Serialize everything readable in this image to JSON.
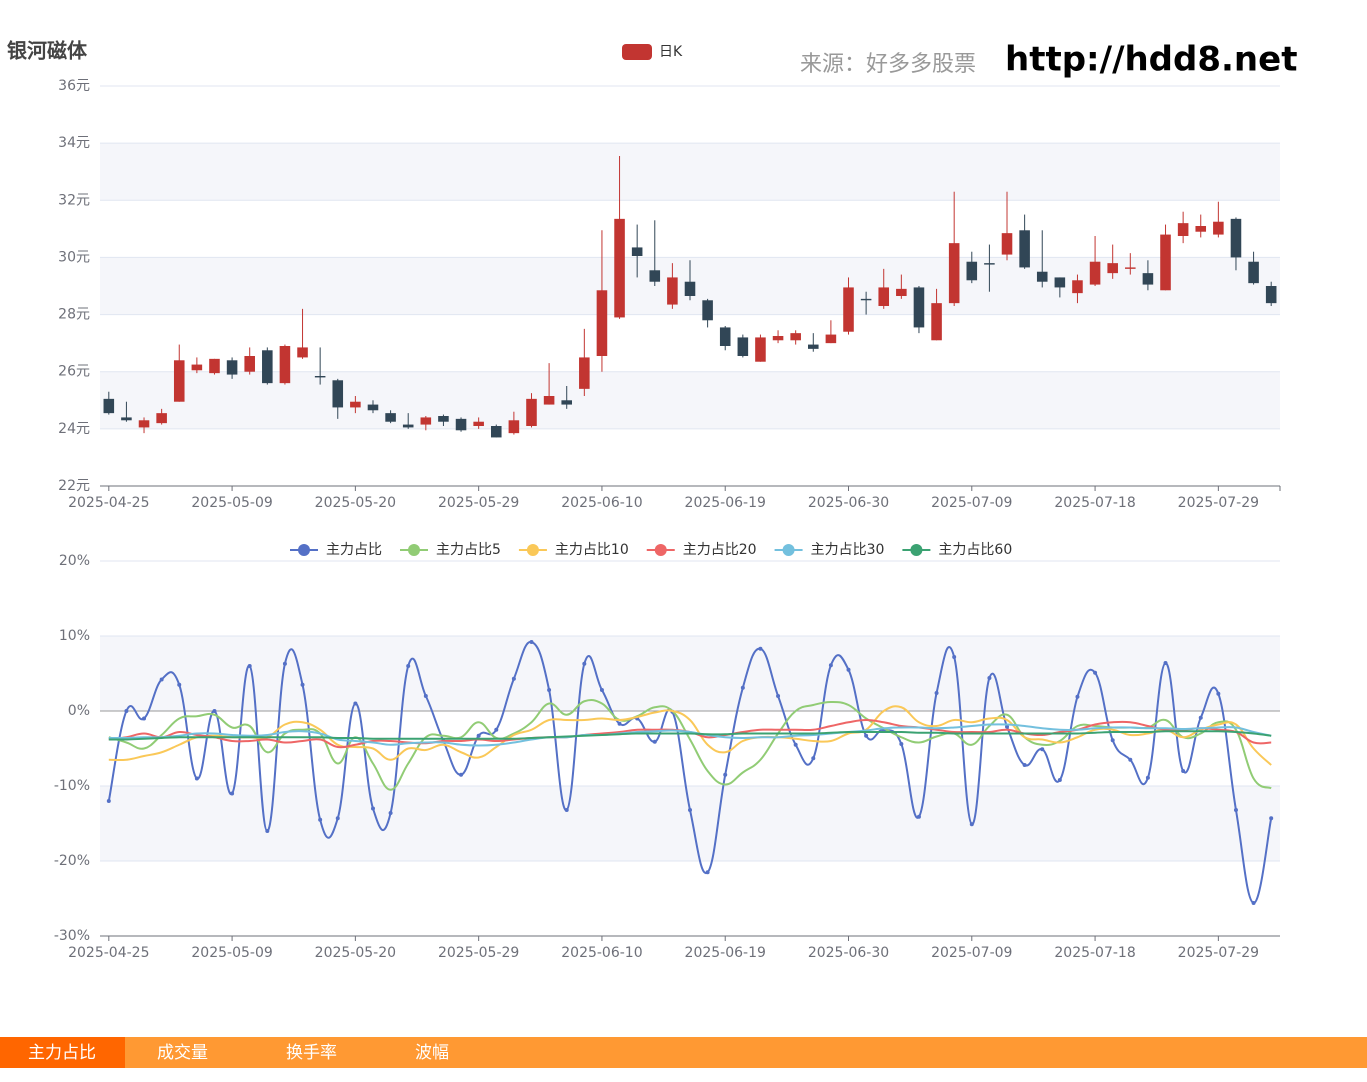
{
  "header": {
    "stock": "银河磁体",
    "source": "来源：好多多股票",
    "url": "http://hdd8.net"
  },
  "tabs": [
    "主力占比",
    "成交量",
    "换手率",
    "波幅"
  ],
  "chart_data": [
    {
      "type": "candlestick",
      "categories": [
        "2025-04-25",
        null,
        null,
        null,
        null,
        null,
        null,
        "2025-05-09",
        null,
        null,
        null,
        null,
        null,
        null,
        "2025-05-20",
        null,
        null,
        null,
        null,
        null,
        null,
        "2025-05-29",
        null,
        null,
        null,
        null,
        null,
        null,
        "2025-06-10",
        null,
        null,
        null,
        null,
        null,
        null,
        "2025-06-19",
        null,
        null,
        null,
        null,
        null,
        null,
        "2025-06-30",
        null,
        null,
        null,
        null,
        null,
        null,
        "2025-07-09",
        null,
        null,
        null,
        null,
        null,
        null,
        "2025-07-18",
        null,
        null,
        null,
        null,
        null,
        null,
        "2025-07-29",
        null,
        null,
        null
      ],
      "ylim": [
        22,
        36
      ],
      "yticks": [
        {
          "value": 22,
          "label": "22元"
        },
        {
          "value": 24,
          "label": "24元"
        },
        {
          "value": 26,
          "label": "26元"
        },
        {
          "value": 28,
          "label": "28元"
        },
        {
          "value": 30,
          "label": "30元"
        },
        {
          "value": 32,
          "label": "32元"
        },
        {
          "value": 34,
          "label": "34元"
        },
        {
          "value": 36,
          "label": "36元"
        }
      ],
      "up_color": "#c23531",
      "down_color": "#314656",
      "series": [
        {
          "name": "日K",
          "color": "#c23531",
          "values": [
            [
              25.05,
              24.55,
              24.5,
              25.3
            ],
            [
              24.4,
              24.3,
              24.25,
              24.95
            ],
            [
              24.05,
              24.3,
              23.85,
              24.4
            ],
            [
              24.2,
              24.55,
              24.15,
              24.7
            ],
            [
              24.95,
              26.4,
              24.95,
              26.95
            ],
            [
              26.05,
              26.25,
              25.95,
              26.5
            ],
            [
              25.95,
              26.45,
              25.9,
              26.45
            ],
            [
              26.4,
              25.9,
              25.75,
              26.5
            ],
            [
              26.0,
              26.55,
              25.9,
              26.85
            ],
            [
              26.75,
              25.6,
              25.55,
              26.85
            ],
            [
              25.6,
              26.9,
              25.55,
              26.95
            ],
            [
              26.5,
              26.85,
              26.45,
              28.2
            ],
            [
              25.85,
              25.8,
              25.55,
              26.85
            ],
            [
              25.7,
              24.75,
              24.35,
              25.75
            ],
            [
              24.75,
              24.95,
              24.55,
              25.15
            ],
            [
              24.85,
              24.65,
              24.55,
              25.0
            ],
            [
              24.55,
              24.25,
              24.2,
              24.65
            ],
            [
              24.15,
              24.05,
              24.0,
              24.55
            ],
            [
              24.15,
              24.4,
              23.95,
              24.45
            ],
            [
              24.45,
              24.25,
              24.1,
              24.5
            ],
            [
              24.35,
              23.95,
              23.9,
              24.4
            ],
            [
              24.1,
              24.25,
              24.0,
              24.4
            ],
            [
              24.1,
              23.7,
              23.7,
              24.15
            ],
            [
              23.85,
              24.3,
              23.8,
              24.6
            ],
            [
              24.1,
              25.05,
              24.05,
              25.25
            ],
            [
              24.85,
              25.15,
              24.85,
              26.3
            ],
            [
              25.0,
              24.85,
              24.7,
              25.5
            ],
            [
              25.4,
              26.5,
              25.15,
              27.5
            ],
            [
              26.55,
              28.85,
              26.0,
              30.95
            ],
            [
              27.9,
              31.35,
              27.85,
              33.55
            ],
            [
              30.35,
              30.05,
              29.3,
              31.15
            ],
            [
              29.55,
              29.15,
              29.0,
              31.3
            ],
            [
              28.35,
              29.3,
              28.2,
              29.8
            ],
            [
              29.15,
              28.65,
              28.5,
              29.9
            ],
            [
              28.5,
              27.8,
              27.55,
              28.55
            ],
            [
              27.55,
              26.9,
              26.75,
              27.6
            ],
            [
              27.2,
              26.55,
              26.5,
              27.3
            ],
            [
              26.35,
              27.2,
              26.35,
              27.3
            ],
            [
              27.1,
              27.25,
              27.0,
              27.45
            ],
            [
              27.1,
              27.35,
              26.95,
              27.45
            ],
            [
              26.95,
              26.8,
              26.7,
              27.35
            ],
            [
              27.0,
              27.3,
              27.0,
              27.8
            ],
            [
              27.4,
              28.95,
              27.3,
              29.3
            ],
            [
              28.55,
              28.5,
              28.0,
              28.8
            ],
            [
              28.3,
              28.95,
              28.2,
              29.6
            ],
            [
              28.65,
              28.9,
              28.55,
              29.4
            ],
            [
              28.95,
              27.55,
              27.35,
              29.0
            ],
            [
              27.1,
              28.4,
              27.1,
              28.9
            ],
            [
              28.4,
              30.5,
              28.3,
              32.3
            ],
            [
              29.85,
              29.2,
              29.1,
              30.2
            ],
            [
              29.8,
              29.75,
              28.8,
              30.45
            ],
            [
              30.1,
              30.85,
              29.9,
              32.3
            ],
            [
              30.95,
              29.65,
              29.6,
              31.5
            ],
            [
              29.5,
              29.15,
              28.95,
              30.95
            ],
            [
              29.3,
              28.95,
              28.6,
              29.3
            ],
            [
              28.75,
              29.2,
              28.4,
              29.4
            ],
            [
              29.05,
              29.85,
              29.0,
              30.75
            ],
            [
              29.45,
              29.8,
              29.25,
              30.45
            ],
            [
              29.6,
              29.65,
              29.4,
              30.15
            ],
            [
              29.45,
              29.05,
              28.85,
              29.9
            ],
            [
              28.85,
              30.8,
              28.85,
              31.15
            ],
            [
              30.75,
              31.2,
              30.5,
              31.6
            ],
            [
              30.9,
              31.1,
              30.7,
              31.5
            ],
            [
              30.8,
              31.25,
              30.7,
              31.95
            ],
            [
              31.35,
              30.0,
              29.55,
              31.4
            ],
            [
              29.85,
              29.1,
              29.05,
              30.2
            ],
            [
              29.0,
              28.4,
              28.3,
              29.15
            ]
          ]
        }
      ],
      "grid": true
    },
    {
      "type": "line",
      "categories": [
        "2025-04-25",
        null,
        null,
        null,
        null,
        null,
        null,
        "2025-05-09",
        null,
        null,
        null,
        null,
        null,
        null,
        "2025-05-20",
        null,
        null,
        null,
        null,
        null,
        null,
        "2025-05-29",
        null,
        null,
        null,
        null,
        null,
        null,
        "2025-06-10",
        null,
        null,
        null,
        null,
        null,
        null,
        "2025-06-19",
        null,
        null,
        null,
        null,
        null,
        null,
        "2025-06-30",
        null,
        null,
        null,
        null,
        null,
        null,
        "2025-07-09",
        null,
        null,
        null,
        null,
        null,
        null,
        "2025-07-18",
        null,
        null,
        null,
        null,
        null,
        null,
        "2025-07-29",
        null,
        null,
        null
      ],
      "ylim": [
        -30,
        20
      ],
      "yticks": [
        {
          "value": -30,
          "label": "-30%"
        },
        {
          "value": -20,
          "label": "-20%"
        },
        {
          "value": -10,
          "label": "-10%"
        },
        {
          "value": 0,
          "label": "0%"
        },
        {
          "value": 10,
          "label": "10%"
        },
        {
          "value": 20,
          "label": "20%"
        }
      ],
      "grid": true,
      "series": [
        {
          "name": "主力占比",
          "color": "#5470c6",
          "values": [
            -12,
            0,
            -1,
            4.2,
            3.5,
            -9,
            0,
            -11,
            6,
            -16,
            6.3,
            3.5,
            -14.5,
            -14.3,
            1,
            -13,
            -13.6,
            6,
            2,
            -4,
            -8.5,
            -3.3,
            -2.5,
            4.3,
            9.2,
            2.8,
            -13.2,
            6.3,
            2.8,
            -1.7,
            -1,
            -4.1,
            -0.1,
            -13.2,
            -21.5,
            -8.5,
            3.1,
            8.3,
            2,
            -4.5,
            -6.3,
            6.1,
            5.5,
            -3.3,
            -2.5,
            -4.4,
            -14.1,
            2.4,
            7.2,
            -15.1,
            4.4,
            -2.1,
            -7.2,
            -5.1,
            -9.2,
            1.9,
            5.1,
            -3.9,
            -6.5,
            -8.9,
            6.4,
            -8,
            -0.9,
            2.3,
            -13.2,
            -25.6,
            -14.3
          ]
        },
        {
          "name": "主力占比5",
          "color": "#91cc75",
          "values": [
            -3.5,
            -4.2,
            -5,
            -3.2,
            -1,
            -0.7,
            -0.5,
            -2.2,
            -2,
            -5.5,
            -3,
            -2.5,
            -3,
            -7,
            -3.5,
            -7,
            -10.5,
            -7,
            -3.5,
            -3.3,
            -3.5,
            -1.5,
            -3.6,
            -3,
            -1.5,
            1,
            -0.5,
            1.3,
            1,
            -1.2,
            -0.7,
            0.5,
            0,
            -3.8,
            -8,
            -9.8,
            -8.2,
            -6.5,
            -3,
            0,
            0.8,
            1.2,
            0.8,
            -1,
            -2.3,
            -3.5,
            -4.2,
            -3.4,
            -3,
            -4.5,
            -2,
            -0.5,
            -3.5,
            -4.5,
            -4,
            -2,
            -2,
            -2.2,
            -2.2,
            -2.2,
            -1.2,
            -3.5,
            -3,
            -1.5,
            -2.5,
            -9,
            -10.3
          ]
        },
        {
          "name": "主力占比10",
          "color": "#fac858",
          "values": [
            -6.5,
            -6.5,
            -6,
            -5.5,
            -4.5,
            -3.5,
            -3.3,
            -3.5,
            -3.5,
            -3.5,
            -1.8,
            -1.5,
            -2.5,
            -4.5,
            -4.8,
            -5,
            -6.5,
            -5,
            -5.2,
            -4.5,
            -5.5,
            -6.2,
            -4.8,
            -3.2,
            -2.5,
            -1.2,
            -1.2,
            -1.2,
            -1,
            -1.2,
            -0.8,
            -0.2,
            0,
            -1.2,
            -4.5,
            -5.5,
            -4,
            -3.5,
            -3.5,
            -3.7,
            -4,
            -4,
            -3,
            -2.5,
            0,
            0.5,
            -1.5,
            -2,
            -1.2,
            -1.5,
            -1,
            -1.2,
            -3.5,
            -3.8,
            -4.2,
            -3.5,
            -2.5,
            -2.5,
            -3.2,
            -3,
            -2.5,
            -3.5,
            -2.5,
            -1.8,
            -1.8,
            -5,
            -7.2
          ]
        },
        {
          "name": "主力占比20",
          "color": "#ee6666",
          "values": [
            -3.8,
            -3.5,
            -3.0,
            -3.5,
            -2.8,
            -3.2,
            -3.5,
            -4.0,
            -4.0,
            -3.8,
            -4.2,
            -4.0,
            -3.8,
            -4.8,
            -4.5,
            -4.0,
            -4.0,
            -4.2,
            -4.3,
            -4.0,
            -4.0,
            -3.8,
            -4.0,
            -3.8,
            -3.6,
            -3.5,
            -3.5,
            -3.2,
            -3.0,
            -2.8,
            -2.5,
            -2.5,
            -2.5,
            -2.8,
            -3.5,
            -3.2,
            -2.8,
            -2.5,
            -2.5,
            -2.5,
            -2.5,
            -2.0,
            -1.5,
            -1.2,
            -1.5,
            -2.0,
            -2.2,
            -2.5,
            -2.8,
            -2.8,
            -2.8,
            -2.5,
            -3.0,
            -3.2,
            -2.8,
            -2.5,
            -1.8,
            -1.5,
            -1.5,
            -2.0,
            -2.5,
            -2.5,
            -2.3,
            -2.5,
            -2.8,
            -4.2,
            -4.2
          ]
        },
        {
          "name": "主力占比30",
          "color": "#73c0de",
          "values": [
            -3.6,
            -3.6,
            -3.5,
            -3.5,
            -3.3,
            -3.0,
            -3.0,
            -3.2,
            -3.3,
            -3.2,
            -2.8,
            -2.7,
            -3.0,
            -3.8,
            -4.0,
            -4.2,
            -4.5,
            -4.3,
            -4.2,
            -4.2,
            -4.5,
            -4.6,
            -4.5,
            -4.2,
            -3.8,
            -3.5,
            -3.5,
            -3.2,
            -3.2,
            -3.0,
            -2.8,
            -2.7,
            -2.6,
            -2.8,
            -3.2,
            -3.5,
            -3.6,
            -3.5,
            -3.5,
            -3.3,
            -3.2,
            -3.0,
            -2.8,
            -2.6,
            -2.3,
            -2.2,
            -2.2,
            -2.3,
            -2.2,
            -2.0,
            -1.8,
            -1.8,
            -2.0,
            -2.3,
            -2.5,
            -2.5,
            -2.3,
            -2.2,
            -2.2,
            -2.3,
            -2.3,
            -2.4,
            -2.3,
            -2.2,
            -2.2,
            -2.8,
            -3.3
          ]
        },
        {
          "name": "主力占比60",
          "color": "#3ba272",
          "values": [
            -3.8,
            -3.8,
            -3.7,
            -3.6,
            -3.5,
            -3.5,
            -3.5,
            -3.5,
            -3.5,
            -3.5,
            -3.5,
            -3.5,
            -3.5,
            -3.6,
            -3.6,
            -3.7,
            -3.7,
            -3.7,
            -3.7,
            -3.7,
            -3.7,
            -3.7,
            -3.7,
            -3.7,
            -3.6,
            -3.5,
            -3.4,
            -3.3,
            -3.2,
            -3.1,
            -3.0,
            -3.0,
            -3.0,
            -3.0,
            -3.1,
            -3.1,
            -3.0,
            -3.0,
            -3.0,
            -3.0,
            -3.0,
            -2.9,
            -2.8,
            -2.8,
            -2.8,
            -2.8,
            -2.9,
            -2.9,
            -3.0,
            -3.0,
            -3.0,
            -3.0,
            -3.0,
            -3.0,
            -3.0,
            -3.0,
            -2.9,
            -2.8,
            -2.8,
            -2.8,
            -2.7,
            -2.7,
            -2.7,
            -2.7,
            -2.8,
            -3.0,
            -3.3
          ]
        }
      ]
    }
  ]
}
